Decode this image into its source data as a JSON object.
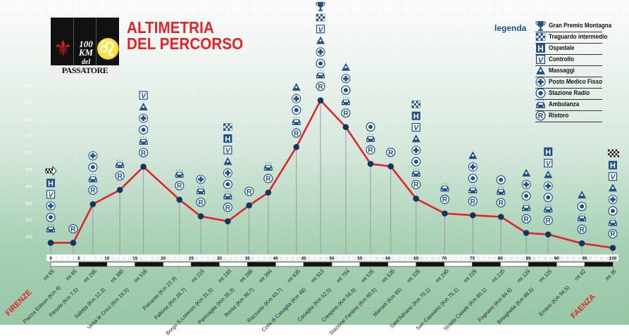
{
  "header": {
    "title_line1": "ALTIMETRIA",
    "title_line2": "DEL PERCORSO",
    "logo_text": "100 KM del PASSATORE"
  },
  "legend": {
    "title": "legenda",
    "items": [
      {
        "icon": "trophy-icon",
        "label": "Gran Premio Montagna"
      },
      {
        "icon": "checkered-icon",
        "label": "Traguardo intermedio"
      },
      {
        "icon": "hospital-icon",
        "label": "Ospedale"
      },
      {
        "icon": "check-icon",
        "label": "Controllo"
      },
      {
        "icon": "massage-icon",
        "label": "Massaggi"
      },
      {
        "icon": "medical-cross-icon",
        "label": "Posto Medico Fisso"
      },
      {
        "icon": "radio-icon",
        "label": "Stazione Radio"
      },
      {
        "icon": "ambulance-icon",
        "label": "Ambulanza"
      },
      {
        "icon": "ristoro-icon",
        "label": "Ristoro"
      }
    ]
  },
  "colors": {
    "profile": "#e1232b",
    "point": "#12375f",
    "icon": "#1e4f86",
    "title": "#e1232b"
  },
  "chart_data": {
    "type": "line",
    "xlim": [
      0,
      100
    ],
    "ylim": [
      0,
      1000
    ],
    "yticks": [
      100,
      200,
      300,
      400,
      500,
      600,
      700,
      800,
      900,
      1000
    ],
    "xticks_major": [
      0,
      5,
      10,
      15,
      20,
      25,
      30,
      35,
      40,
      45,
      50,
      55,
      60,
      65,
      70,
      75,
      80,
      85,
      90,
      95,
      100
    ],
    "start_label": "FIRENZE",
    "end_label": "FAENZA",
    "stations": [
      {
        "name": "",
        "km": 0,
        "alt": 65,
        "alt_label": "mt 65",
        "services": [
          "start",
          "hospital",
          "check",
          "cross",
          "radio",
          "ambulance"
        ]
      },
      {
        "name": "Piazza Edison (Km 4)",
        "km": 4,
        "alt": 65,
        "alt_label": "mt 65",
        "services": [
          "ristoro"
        ]
      },
      {
        "name": "Fiesole (Km 7,5)",
        "km": 7.5,
        "alt": 295,
        "alt_label": "mt 295",
        "services": [
          "cross",
          "radio",
          "ambulance",
          "ristoro"
        ]
      },
      {
        "name": "Saletta (Km 12,3)",
        "km": 12.3,
        "alt": 380,
        "alt_label": "mt 380",
        "services": [
          "ambulance",
          "ristoro"
        ]
      },
      {
        "name": "Vetta le Croci (Km 16,5)",
        "km": 16.5,
        "alt": 518,
        "alt_label": "mt 518",
        "services": [
          "check",
          "massage",
          "cross",
          "radio",
          "ambulance",
          "ristoro"
        ]
      },
      {
        "name": "Polcanto (Km 22,9)",
        "km": 22.9,
        "alt": 322,
        "alt_label": "",
        "services": [
          "ambulance",
          "ristoro"
        ]
      },
      {
        "name": "Faltona (Km 26,7)",
        "km": 26.7,
        "alt": 223,
        "alt_label": "mt 223",
        "services": [
          "cross",
          "ambulance",
          "ristoro"
        ]
      },
      {
        "name": "Borgo S.Lorenzo (Km 31,5)",
        "km": 31.5,
        "alt": 193,
        "alt_label": "mt 193",
        "services": [
          "checkered",
          "hospital",
          "check",
          "massage",
          "cross",
          "radio",
          "ambulance",
          "ristoro"
        ]
      },
      {
        "name": "Panicaglia (Km 35,3)",
        "km": 35.3,
        "alt": 288,
        "alt_label": "mt 288",
        "services": [
          "ristoro"
        ]
      },
      {
        "name": "Ronta (Km 38,7)",
        "km": 38.7,
        "alt": 364,
        "alt_label": "mt 364",
        "services": [
          "ambulance",
          "ristoro"
        ]
      },
      {
        "name": "Razzuolo (Km 43,7)",
        "km": 43.7,
        "alt": 635,
        "alt_label": "mt 635",
        "services": [
          "massage",
          "cross",
          "radio",
          "ambulance",
          "ristoro"
        ]
      },
      {
        "name": "Colla di Casaglia (Km 48)",
        "km": 48,
        "alt": 913,
        "alt_label": "mt 913",
        "services": [
          "trophy",
          "checkered",
          "check",
          "massage",
          "cross",
          "radio",
          "ambulance",
          "ristoro"
        ]
      },
      {
        "name": "Casaglia (Km 52,5)",
        "km": 52.5,
        "alt": 754,
        "alt_label": "mt 754",
        "services": [
          "massage",
          "cross",
          "radio",
          "ambulance",
          "ristoro"
        ]
      },
      {
        "name": "Crespino (Km 56,9)",
        "km": 56.9,
        "alt": 535,
        "alt_label": "mt 535",
        "services": [
          "radio",
          "ambulance",
          "ristoro"
        ]
      },
      {
        "name": "Stazione Fantino (Km 60,5)",
        "km": 60.5,
        "alt": 520,
        "alt_label": "mt 520",
        "services": [
          "ristoro"
        ]
      },
      {
        "name": "Marradi (Km 65)",
        "km": 65,
        "alt": 328,
        "alt_label": "mt 328",
        "services": [
          "checkered",
          "hospital",
          "check",
          "massage",
          "cross",
          "radio",
          "ambulance",
          "ristoro"
        ]
      },
      {
        "name": "Sant'Adriano (Km 70,1)",
        "km": 70.1,
        "alt": 240,
        "alt_label": "mt 240",
        "services": [
          "ambulance",
          "ristoro"
        ]
      },
      {
        "name": "San Cassiano (Km 75,1)",
        "km": 75.1,
        "alt": 229,
        "alt_label": "mt 229",
        "services": [
          "massage",
          "cross",
          "radio",
          "ambulance",
          "ristoro"
        ]
      },
      {
        "name": "Strada Casale (Km 80,1)",
        "km": 80.1,
        "alt": 220,
        "alt_label": "mt 220",
        "services": [
          "radio",
          "ambulance",
          "ristoro"
        ]
      },
      {
        "name": "Fognano (Km 84,6)",
        "km": 84.6,
        "alt": 124,
        "alt_label": "mt 124",
        "services": [
          "massage",
          "cross",
          "radio",
          "ambulance",
          "ristoro"
        ]
      },
      {
        "name": "Brisighella (Km 88,5)",
        "km": 88.5,
        "alt": 115,
        "alt_label": "mt 115",
        "services": [
          "hospital",
          "check",
          "massage",
          "cross",
          "radio",
          "ambulance",
          "ristoro"
        ]
      },
      {
        "name": "Errano (Km 94,5)",
        "km": 94.5,
        "alt": 62,
        "alt_label": "mt 62",
        "services": [
          "massage",
          "radio",
          "ambulance",
          "ristoro"
        ]
      },
      {
        "name": "",
        "km": 100,
        "alt": 35,
        "alt_label": "mt 35",
        "services": [
          "finish",
          "hospital",
          "check",
          "massage",
          "cross",
          "radio",
          "ambulance",
          "ristoro"
        ]
      }
    ]
  }
}
